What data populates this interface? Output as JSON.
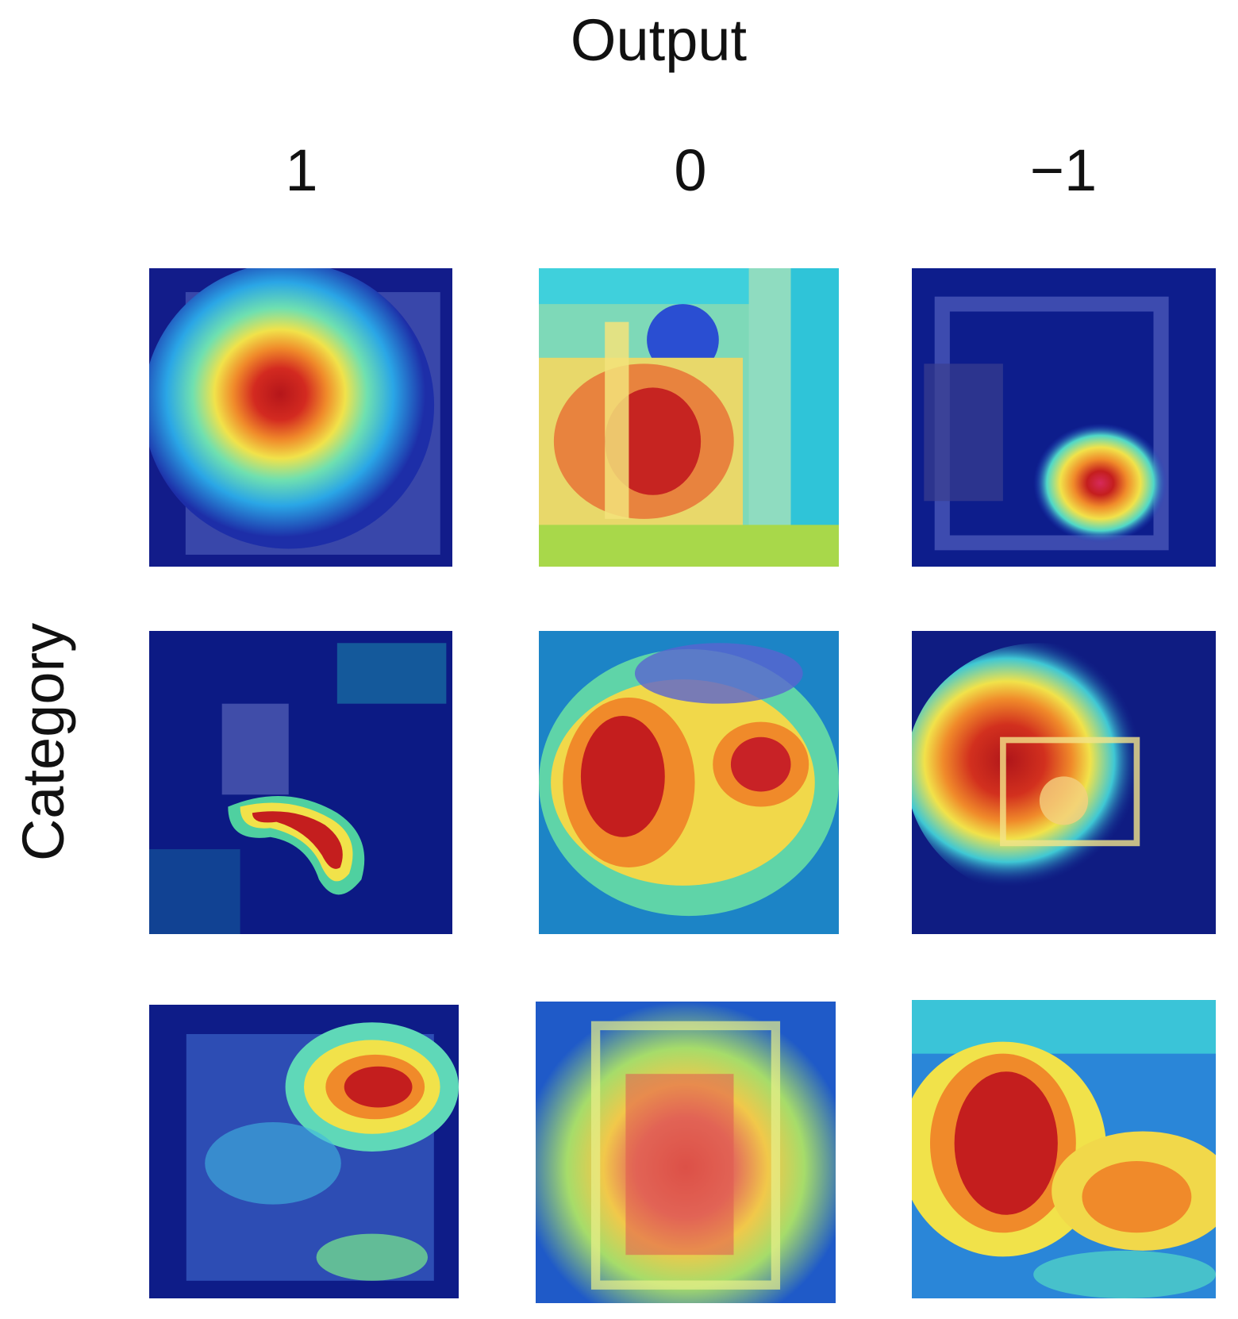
{
  "title": "Output",
  "columns": [
    "1",
    "0",
    "−1"
  ],
  "row_axis_label": "Category",
  "colormap": [
    "#0b1a8c",
    "#1e4fd8",
    "#27c7e0",
    "#8be08a",
    "#f1e24a",
    "#f08a2a",
    "#c41e1e"
  ]
}
